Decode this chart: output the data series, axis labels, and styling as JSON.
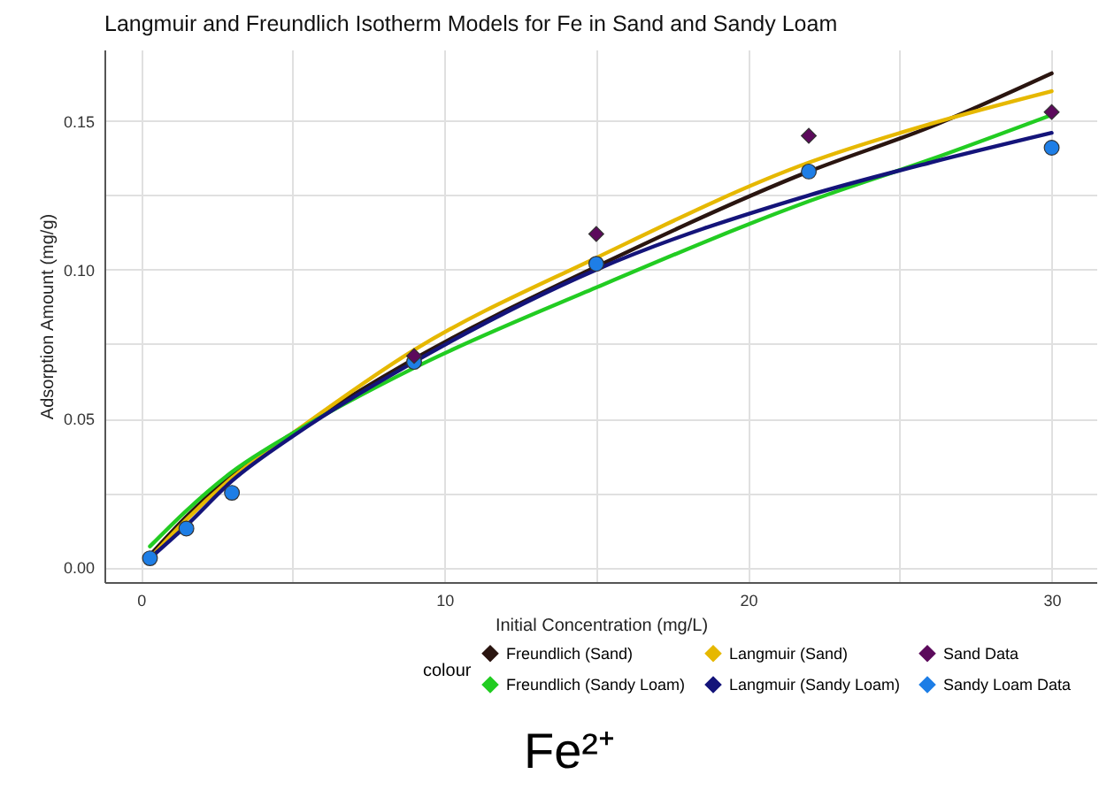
{
  "chart_data": {
    "type": "line",
    "title": "Langmuir and Freundlich Isotherm Models for Fe in Sand and Sandy Loam",
    "xlabel": "Initial Concentration (mg/L)",
    "ylabel": "Adsorption Amount (mg/g)",
    "legend_title": "colour",
    "xlim": [
      -1.2,
      31.5
    ],
    "ylim": [
      -0.005,
      0.174
    ],
    "xticks": [
      0,
      {
        "value": 5,
        "label": null
      },
      10,
      {
        "value": 15,
        "label": null
      },
      20,
      {
        "value": 25,
        "label": null
      },
      30
    ],
    "yticks": [
      {
        "value": 0,
        "label": "0.00"
      },
      {
        "value": 0.025,
        "label": null
      },
      {
        "value": 0.05,
        "label": "0.05"
      },
      {
        "value": 0.075,
        "label": null
      },
      {
        "value": 0.1,
        "label": "0.10"
      },
      {
        "value": 0.125,
        "label": null
      },
      {
        "value": 0.15,
        "label": "0.15"
      }
    ],
    "grid": true,
    "legend": "bottom",
    "series": [
      {
        "name": "Freundlich (Sand)",
        "type": "line",
        "color": "#2a1510",
        "x": [
          0.3,
          1.5,
          3,
          5,
          9,
          15,
          22,
          26,
          30
        ],
        "values": [
          0.004,
          0.017,
          0.031,
          0.045,
          0.07,
          0.101,
          0.133,
          0.148,
          0.166
        ]
      },
      {
        "name": "Langmuir (Sand)",
        "type": "line",
        "color": "#e6b800",
        "x": [
          0.3,
          1.5,
          3,
          5,
          9,
          15,
          22,
          26,
          30
        ],
        "values": [
          0.003,
          0.016,
          0.03,
          0.045,
          0.073,
          0.104,
          0.136,
          0.149,
          0.16
        ]
      },
      {
        "name": "Sand Data",
        "type": "scatter",
        "marker": "diamond",
        "color": "#5c0a5c",
        "x": [
          9,
          15,
          22,
          30
        ],
        "values": [
          0.071,
          0.112,
          0.145,
          0.153
        ]
      },
      {
        "name": "Freundlich (Sandy Loam)",
        "type": "line",
        "color": "#22cc22",
        "x": [
          0.3,
          1.5,
          3,
          5,
          9,
          15,
          22,
          26,
          30
        ],
        "values": [
          0.007,
          0.019,
          0.032,
          0.045,
          0.067,
          0.094,
          0.123,
          0.137,
          0.152
        ]
      },
      {
        "name": "Langmuir (Sandy Loam)",
        "type": "line",
        "color": "#14147a",
        "x": [
          0.3,
          1.5,
          3,
          5,
          9,
          15,
          22,
          26,
          30
        ],
        "values": [
          0.003,
          0.014,
          0.029,
          0.044,
          0.069,
          0.1,
          0.125,
          0.136,
          0.146
        ]
      },
      {
        "name": "Sandy Loam Data",
        "type": "scatter",
        "marker": "circle",
        "color": "#1e7ee6",
        "x": [
          0.3,
          1.5,
          3,
          9,
          15,
          22,
          30
        ],
        "values": [
          0.003,
          0.013,
          0.025,
          0.069,
          0.102,
          0.133,
          0.141
        ]
      }
    ],
    "annotations": [
      "Fe²⁺"
    ]
  }
}
